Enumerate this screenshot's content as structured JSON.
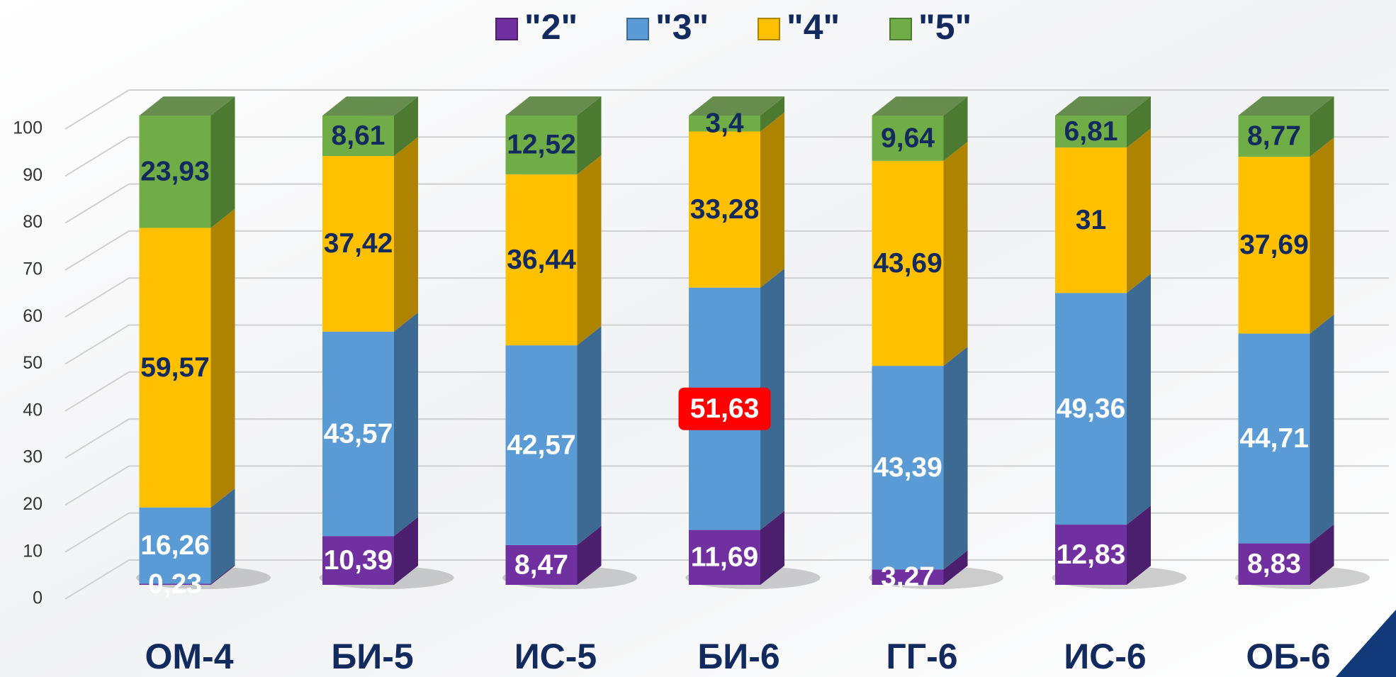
{
  "chart_data": {
    "type": "bar3d_stacked",
    "categories": [
      "ОМ-4",
      "БИ-5",
      "ИС-5",
      "БИ-6",
      "ГГ-6",
      "ИС-6",
      "ОБ-6"
    ],
    "series": [
      {
        "name": "\"2\"",
        "color": "#7030a0",
        "side_color": "#4b1f6d",
        "label_color": "#ffffff",
        "values": [
          0.23,
          10.39,
          8.47,
          11.69,
          3.27,
          12.83,
          8.83
        ],
        "value_labels": [
          "0,23",
          "10,39",
          "8,47",
          "11,69",
          "3,27",
          "12,83",
          "8,83"
        ]
      },
      {
        "name": "\"3\"",
        "color": "#5b9bd5",
        "side_color": "#3c6a92",
        "label_color": "#ffffff",
        "values": [
          16.26,
          43.57,
          42.57,
          51.63,
          43.39,
          49.36,
          44.71
        ],
        "value_labels": [
          "16,26",
          "43,57",
          "42,57",
          "51,63",
          "43,39",
          "49,36",
          "44,71"
        ]
      },
      {
        "name": "\"4\"",
        "color": "#ffc000",
        "side_color": "#ae8300",
        "label_color": "#132a5e",
        "values": [
          59.57,
          37.42,
          36.44,
          33.28,
          43.69,
          31,
          37.69
        ],
        "value_labels": [
          "59,57",
          "37,42",
          "36,44",
          "33,28",
          "43,69",
          "31",
          "37,69"
        ]
      },
      {
        "name": "\"5\"",
        "color": "#70ad47",
        "side_color": "#4c7a30",
        "label_color": "#132a5e",
        "values": [
          23.93,
          8.61,
          12.52,
          3.4,
          9.64,
          6.81,
          8.77
        ],
        "value_labels": [
          "23,93",
          "8,61",
          "12,52",
          "3,4",
          "9,64",
          "6,81",
          "8,77"
        ]
      }
    ],
    "ylim": [
      0,
      100
    ],
    "yticks": [
      0,
      10,
      20,
      30,
      40,
      50,
      60,
      70,
      80,
      90,
      100
    ],
    "grid": true,
    "legend": "top",
    "highlight": {
      "series": 1,
      "index": 3,
      "color": "#ff0000"
    }
  }
}
